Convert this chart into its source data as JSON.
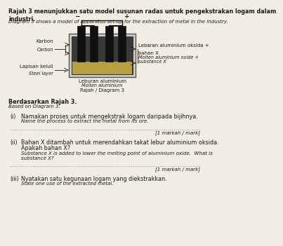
{
  "title_malay": "Rajah 3 menunjukkan satu model susunan radas untuk pengekstrakan logam dalam\nindustri.",
  "title_english": "Diagram 3 shows a model of apparatus set-up for the extraction of metal in the industry.",
  "label_left1_malay": "Karbon",
  "label_left1_english": "Carbon",
  "label_left2_malay": "Lapisan keluli",
  "label_left2_english": "Steel layer",
  "label_right_line1": "Lebaran aluminium oksida +",
  "label_right_line2": "bahan X",
  "label_right_line3": "Molten aluminium oxide +",
  "label_right_line4": "substance X",
  "diagram_caption_malay": "Leburan aluminium",
  "diagram_caption_english": "Molten aluminium",
  "diagram_label": "Rajah / Diagram 3",
  "based_malay": "Berdasarkan Rajah 3.",
  "based_english": "Based on Diagram 3.",
  "q1_num": "(i)",
  "q1_malay": "Namakan proses untuk mengekstrak logam daripada bijihnya.",
  "q1_english": "Name the process to extract the metal from its ore.",
  "q1_mark": "[1 markah / mark]",
  "q2_num": "(ii)",
  "q2_malay_1": "Bahan X ditambah untuk merendahkan takat lebur aluminium oksida.",
  "q2_malay_2": "Apakah bahan X?",
  "q2_english_1": "Substance X is added to lower the melting point of aluminium oxide.  What is",
  "q2_english_2": "substance X?",
  "q2_mark": "[1 markah / mark]",
  "q3_num": "(iii)",
  "q3_malay": "Nyatakan satu kegunaan logam yang diekstrakkan.",
  "q3_english": "State one use of the extracted metal.",
  "bg_color": "#f2ede3",
  "text_color": "#1a1a1a"
}
